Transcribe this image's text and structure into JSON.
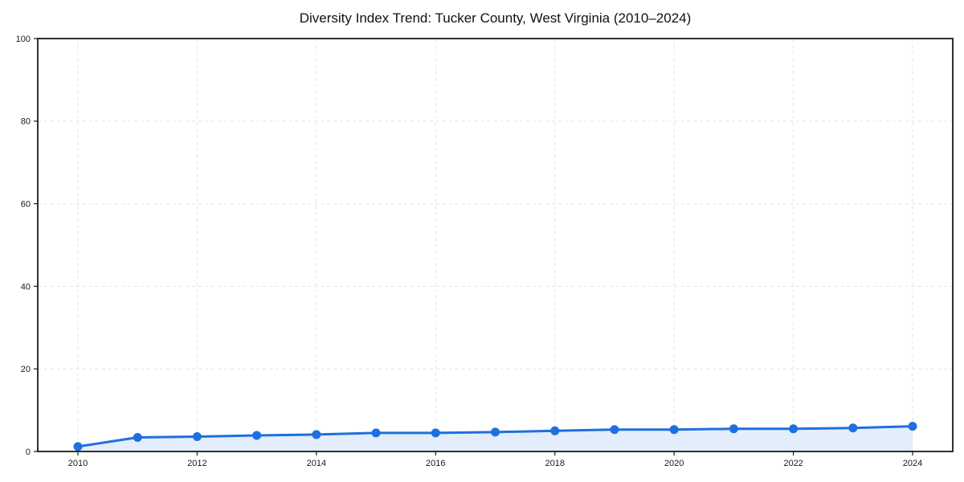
{
  "chart_data": {
    "type": "line",
    "title": "Diversity Index Trend: Tucker County, West Virginia (2010–2024)",
    "x": [
      2010,
      2011,
      2012,
      2013,
      2014,
      2015,
      2016,
      2017,
      2018,
      2019,
      2020,
      2021,
      2022,
      2023,
      2024
    ],
    "series": [
      {
        "name": "Diversity Index",
        "values": [
          1.2,
          3.4,
          3.6,
          3.9,
          4.1,
          4.5,
          4.5,
          4.7,
          5.0,
          5.3,
          5.3,
          5.5,
          5.5,
          5.7,
          6.1
        ]
      }
    ],
    "xlabel": "",
    "ylabel": "",
    "ylim": [
      0,
      100
    ],
    "yticks": [
      0,
      20,
      40,
      60,
      80,
      100
    ],
    "xticks": [
      2010,
      2012,
      2014,
      2016,
      2018,
      2020,
      2022,
      2024
    ],
    "grid": true,
    "grid_style": "dashed",
    "legend_position": "none",
    "marker": "circle",
    "area_fill": true,
    "colors": {
      "line": "#1e6fe0",
      "marker": "#1e6fe0",
      "area_fill": "#e4edfb",
      "grid": "#e3e3e3",
      "spine": "#1a1a1a",
      "tick_text": "#1a1a1a",
      "title_text": "#111111",
      "background": "#ffffff"
    }
  }
}
